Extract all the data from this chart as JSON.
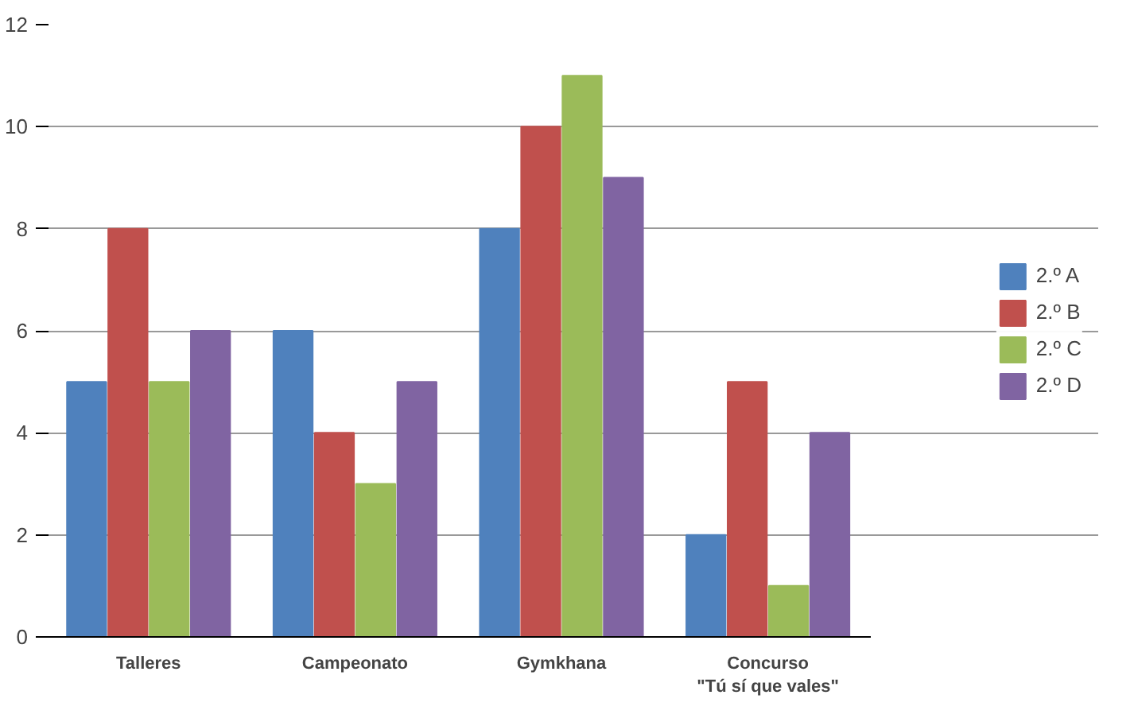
{
  "chart_data": {
    "type": "bar",
    "categories": [
      "Talleres",
      "Campeonato",
      "Gymkhana",
      "Concurso\n\"Tú sí que vales\""
    ],
    "series": [
      {
        "name": "2.º A",
        "color": "#4f81bd",
        "values": [
          5,
          6,
          8,
          2
        ]
      },
      {
        "name": "2.º B",
        "color": "#c0504d",
        "values": [
          8,
          4,
          10,
          5
        ]
      },
      {
        "name": "2.º C",
        "color": "#9bbb59",
        "values": [
          5,
          3,
          11,
          1
        ]
      },
      {
        "name": "2.º D",
        "color": "#8064a2",
        "values": [
          6,
          5,
          9,
          4
        ]
      }
    ],
    "ylim": [
      0,
      12
    ],
    "yticks": [
      0,
      2,
      4,
      6,
      8,
      10,
      12
    ],
    "grid": "y",
    "legend": "right"
  }
}
